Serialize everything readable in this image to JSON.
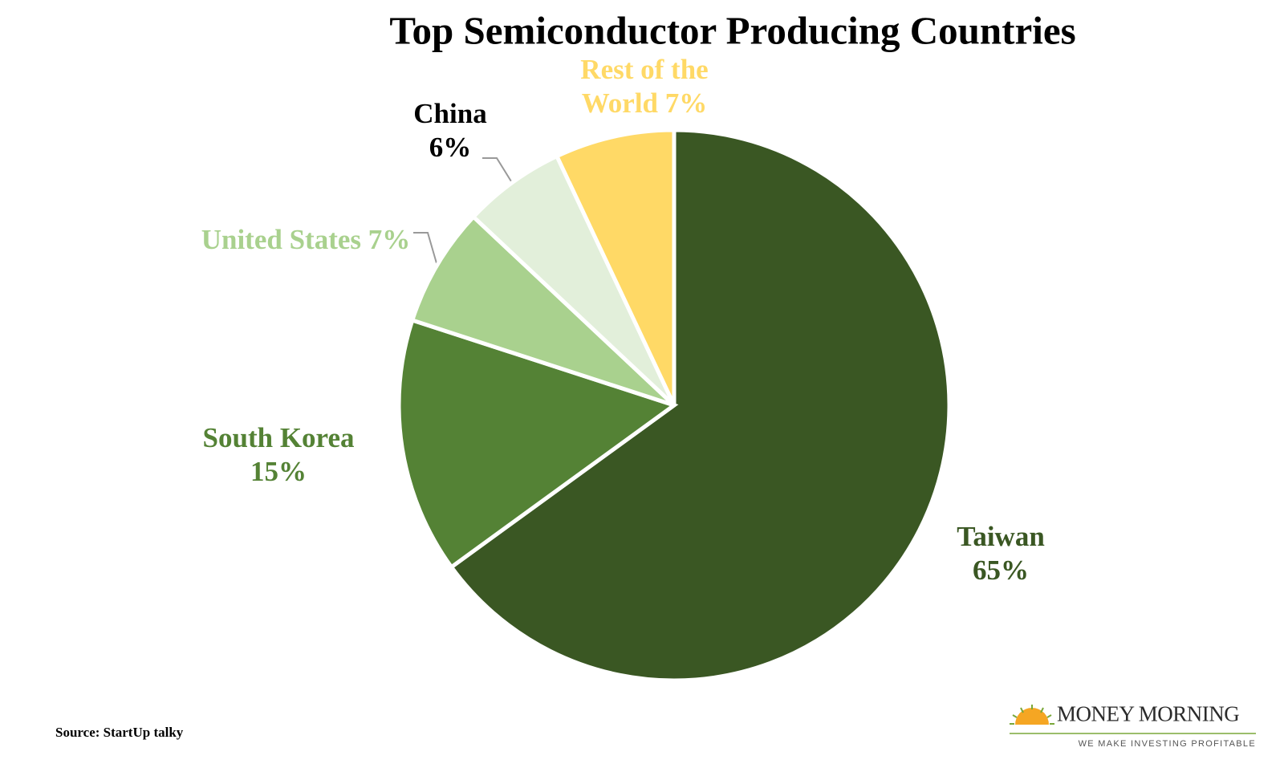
{
  "chart_data": {
    "type": "pie",
    "title": "Top Semiconductor Producing Countries",
    "categories": [
      "Taiwan",
      "South Korea",
      "United States",
      "China",
      "Rest of the World"
    ],
    "values": [
      65,
      15,
      7,
      6,
      7
    ],
    "value_labels": [
      "65%",
      "15%",
      "7%",
      "6%",
      "7%"
    ],
    "colors": [
      "#3a5723",
      "#548235",
      "#a9d18e",
      "#e2efda",
      "#ffd966"
    ],
    "label_colors": [
      "#3a5723",
      "#548235",
      "#a9d18e",
      "#000000",
      "#ffd966"
    ],
    "source": "Source: StartUp talky"
  },
  "logo": {
    "name": "MONEY MORNING",
    "tagline": "WE MAKE INVESTING PROFITABLE"
  }
}
